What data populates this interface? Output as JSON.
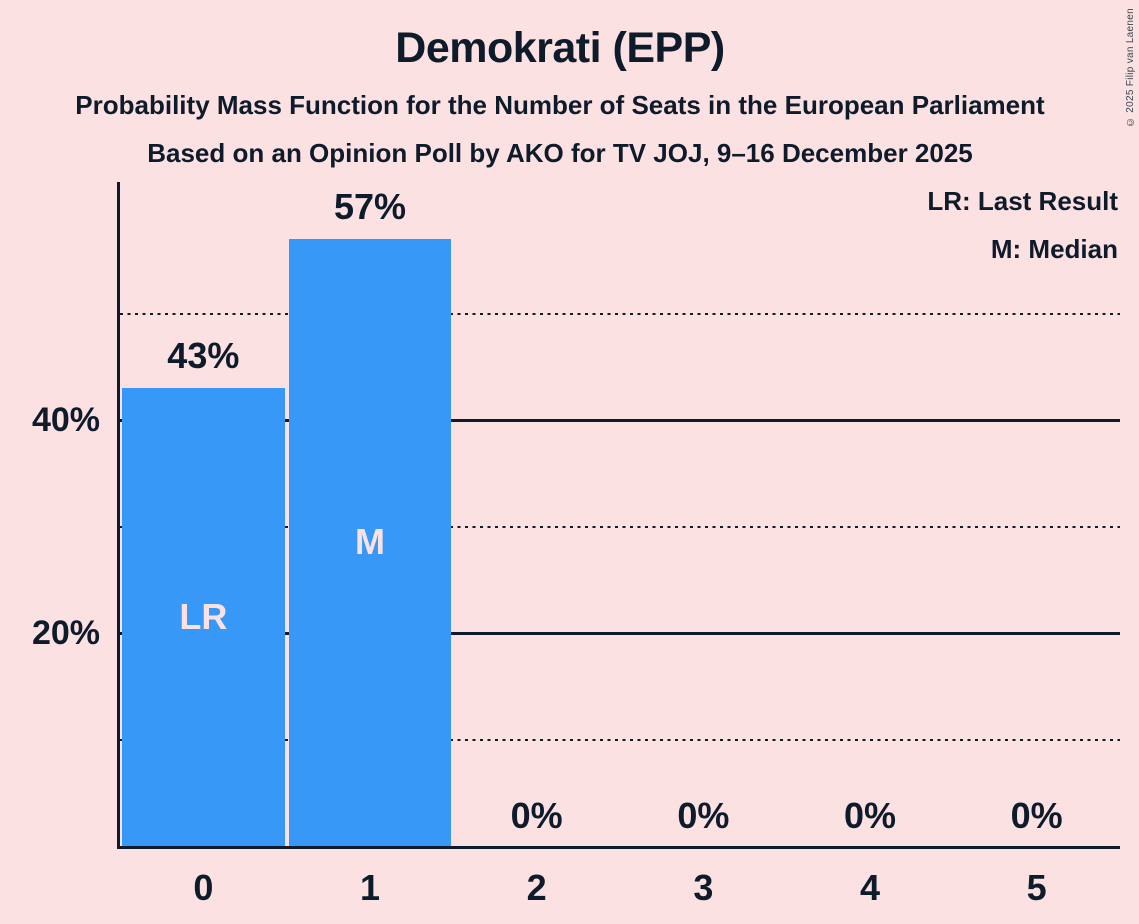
{
  "page": {
    "title": "Demokrati (EPP)",
    "subtitle1": "Probability Mass Function for the Number of Seats in the European Parliament",
    "subtitle2": "Based on an Opinion Poll by AKO for TV JOJ, 9–16 December 2025",
    "copyright": "© 2025 Filip van Laenen"
  },
  "legend": {
    "lines": [
      "LR: Last Result",
      "M: Median"
    ]
  },
  "colors": {
    "background": "#fce1e2",
    "bar": "#3798f8",
    "text": "#0e1b2b",
    "bar_inner_label": "#fce1e2"
  },
  "chart_data": {
    "type": "bar",
    "title": "Demokrati (EPP)",
    "categories": [
      "0",
      "1",
      "2",
      "3",
      "4",
      "5"
    ],
    "values": [
      43,
      57,
      0,
      0,
      0,
      0
    ],
    "value_labels": [
      "43%",
      "57%",
      "0%",
      "0%",
      "0%",
      "0%"
    ],
    "inner_labels": [
      "LR",
      "M",
      "",
      "",
      "",
      ""
    ],
    "xlabel": "",
    "ylabel": "",
    "ylim": [
      0,
      62.4
    ],
    "y_ticks": [
      {
        "pct": 20,
        "label": "20%"
      },
      {
        "pct": 40,
        "label": "40%"
      }
    ],
    "gridlines": [
      {
        "pct": 10,
        "style": "dotted"
      },
      {
        "pct": 20,
        "style": "solid"
      },
      {
        "pct": 30,
        "style": "dotted"
      },
      {
        "pct": 40,
        "style": "solid"
      },
      {
        "pct": 50,
        "style": "dotted"
      }
    ],
    "grid": true,
    "legend_position": "top-right"
  }
}
